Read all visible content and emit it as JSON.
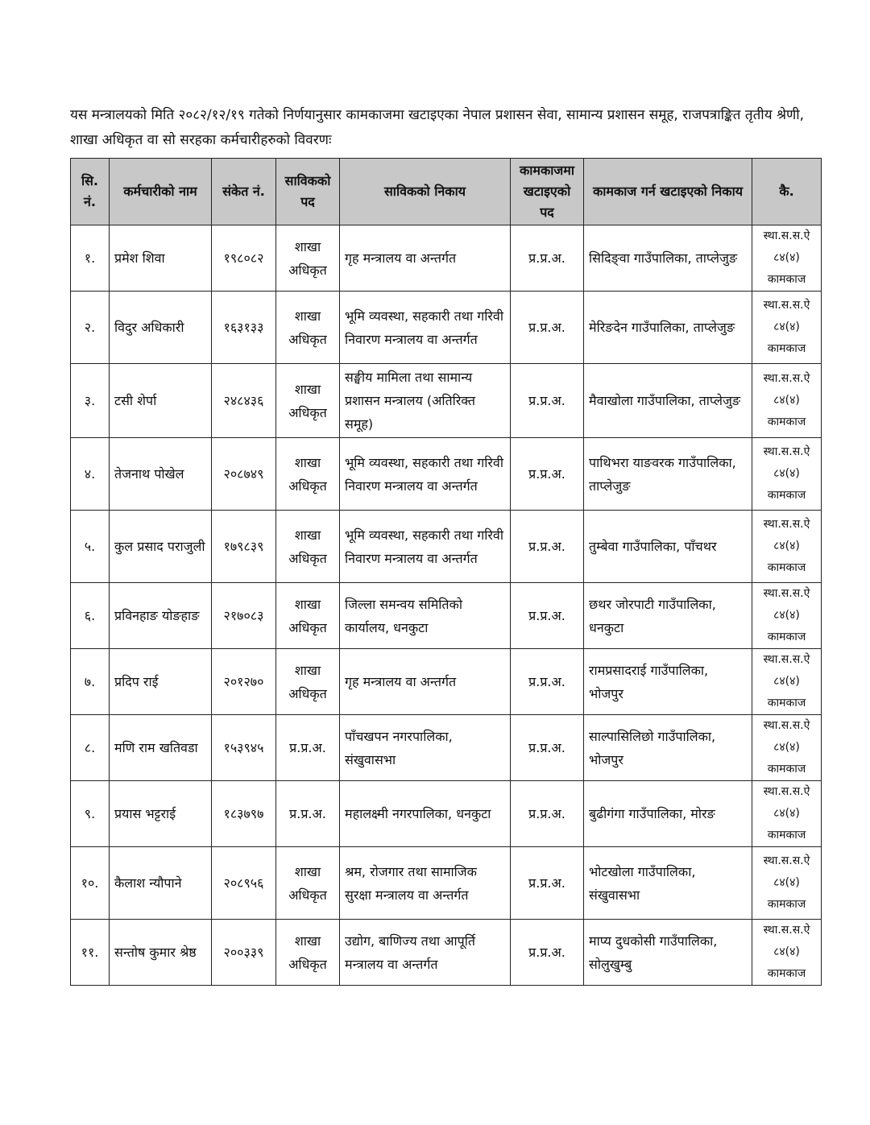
{
  "intro": "यस मन्त्रालयको मिति २०८२/१२/१९ गतेको निर्णयानुसार कामकाजमा खटाइएका नेपाल प्रशासन सेवा, सामान्य प्रशासन समूह, राजपत्राङ्कित तृतीय श्रेणी, शाखा अधिकृत वा सो सरहका कर्मचारीहरुको विवरणः",
  "headers": [
    "सि. नं.",
    "कर्मचारीको नाम",
    "संकेत नं.",
    "साविकको पद",
    "साविकको निकाय",
    "कामकाजमा खटाइएको पद",
    "कामकाज गर्न खटाइएको निकाय",
    "कै."
  ],
  "rows": [
    {
      "sn": "१.",
      "name": "प्रमेश शिवा",
      "code": "१९८०८२",
      "post": "शाखा अधिकृत",
      "office": "गृह मन्त्रालय वा अन्तर्गत",
      "new_post": "प्र.प्र.अ.",
      "new_office": "सिदिङ्वा गाउँपालिका, ताप्लेजुङ",
      "remarks": [
        "स्था.स.स.ऐ",
        "८४(४)",
        "कामकाज"
      ]
    },
    {
      "sn": "२.",
      "name": "विदुर अधिकारी",
      "code": "१६३१३३",
      "post": "शाखा अधिकृत",
      "office": "भूमि व्यवस्था, सहकारी तथा गरिवी निवारण मन्त्रालय वा अन्तर्गत",
      "new_post": "प्र.प्र.अ.",
      "new_office": "मेरिङदेन गाउँपालिका, ताप्लेजुङ",
      "remarks": [
        "स्था.स.स.ऐ",
        "८४(४)",
        "कामकाज"
      ]
    },
    {
      "sn": "३.",
      "name": "टसी शेर्पा",
      "code": "२४८४३६",
      "post": "शाखा अधिकृत",
      "office": "सङ्घीय मामिला तथा सामान्य प्रशासन मन्त्रालय (अतिरिक्त समूह)",
      "new_post": "प्र.प्र.अ.",
      "new_office": "मैवाखोला गाउँपालिका, ताप्लेजुङ",
      "remarks": [
        "स्था.स.स.ऐ",
        "८४(४)",
        "कामकाज"
      ]
    },
    {
      "sn": "४.",
      "name": "तेजनाथ पोखेल",
      "code": "२०८७४९",
      "post": "शाखा अधिकृत",
      "office": "भूमि व्यवस्था, सहकारी तथा गरिवी निवारण मन्त्रालय वा अन्तर्गत",
      "new_post": "प्र.प्र.अ.",
      "new_office": "पाथिभरा याङवरक गाउँपालिका, ताप्लेजुङ",
      "remarks": [
        "स्था.स.स.ऐ",
        "८४(४)",
        "कामकाज"
      ]
    },
    {
      "sn": "५.",
      "name": "कुल प्रसाद पराजुली",
      "code": "१७९८३९",
      "post": "शाखा अधिकृत",
      "office": "भूमि व्यवस्था, सहकारी तथा गरिवी निवारण मन्त्रालय वा अन्तर्गत",
      "new_post": "प्र.प्र.अ.",
      "new_office": "तुम्बेवा गाउँपालिका, पाँचथर",
      "remarks": [
        "स्था.स.स.ऐ",
        "८४(४)",
        "कामकाज"
      ]
    },
    {
      "sn": "६.",
      "name": "प्रविनहाङ योङहाङ",
      "code": "२१७०८३",
      "post": "शाखा अधिकृत",
      "office": "जिल्ला समन्वय समितिको कार्यालय, धनकुटा",
      "new_post": "प्र.प्र.अ.",
      "new_office": "छथर जोरपाटी गाउँपालिका, धनकुटा",
      "remarks": [
        "स्था.स.स.ऐ",
        "८४(४)",
        "कामकाज"
      ]
    },
    {
      "sn": "७.",
      "name": "प्रदिप राई",
      "code": "२०१२७०",
      "post": "शाखा अधिकृत",
      "office": "गृह मन्त्रालय वा अन्तर्गत",
      "new_post": "प्र.प्र.अ.",
      "new_office": "रामप्रसादराई गाउँपालिका, भोजपुर",
      "remarks": [
        "स्था.स.स.ऐ",
        "८४(४)",
        "कामकाज"
      ]
    },
    {
      "sn": "८.",
      "name": "मणि राम खतिवडा",
      "code": "१५३९४५",
      "post": "प्र.प्र.अ.",
      "office": "पाँचखपन नगरपालिका, संखुवासभा",
      "new_post": "प्र.प्र.अ.",
      "new_office": "साल्पासिलिछो गाउँपालिका, भोजपुर",
      "remarks": [
        "स्था.स.स.ऐ",
        "८४(४)",
        "कामकाज"
      ]
    },
    {
      "sn": "९.",
      "name": "प्रयास भट्टराई",
      "code": "१८३७९७",
      "post": "प्र.प्र.अ.",
      "office": "महालक्ष्मी नगरपालिका, धनकुटा",
      "new_post": "प्र.प्र.अ.",
      "new_office": "बुढीगंगा गाउँपालिका, मोरङ",
      "remarks": [
        "स्था.स.स.ऐ",
        "८४(४)",
        "कामकाज"
      ]
    },
    {
      "sn": "१०.",
      "name": "कैलाश न्यौपाने",
      "code": "२०८९५६",
      "post": "शाखा अधिकृत",
      "office": "श्रम, रोजगार तथा सामाजिक सुरक्षा मन्त्रालय वा अन्तर्गत",
      "new_post": "प्र.प्र.अ.",
      "new_office": "भोटखोला गाउँपालिका, संखुवासभा",
      "remarks": [
        "स्था.स.स.ऐ",
        "८४(४)",
        "कामकाज"
      ]
    },
    {
      "sn": "११.",
      "name": "सन्तोष कुमार श्रेष्ठ",
      "code": "२००३३९",
      "post": "शाखा अधिकृत",
      "office": "उद्योग, बाणिज्य तथा आपूर्ति मन्त्रालय वा अन्तर्गत",
      "new_post": "प्र.प्र.अ.",
      "new_office": "माप्य दुधकोसी गाउँपालिका, सोलुखुम्बु",
      "remarks": [
        "स्था.स.स.ऐ",
        "८४(४)",
        "कामकाज"
      ]
    }
  ]
}
